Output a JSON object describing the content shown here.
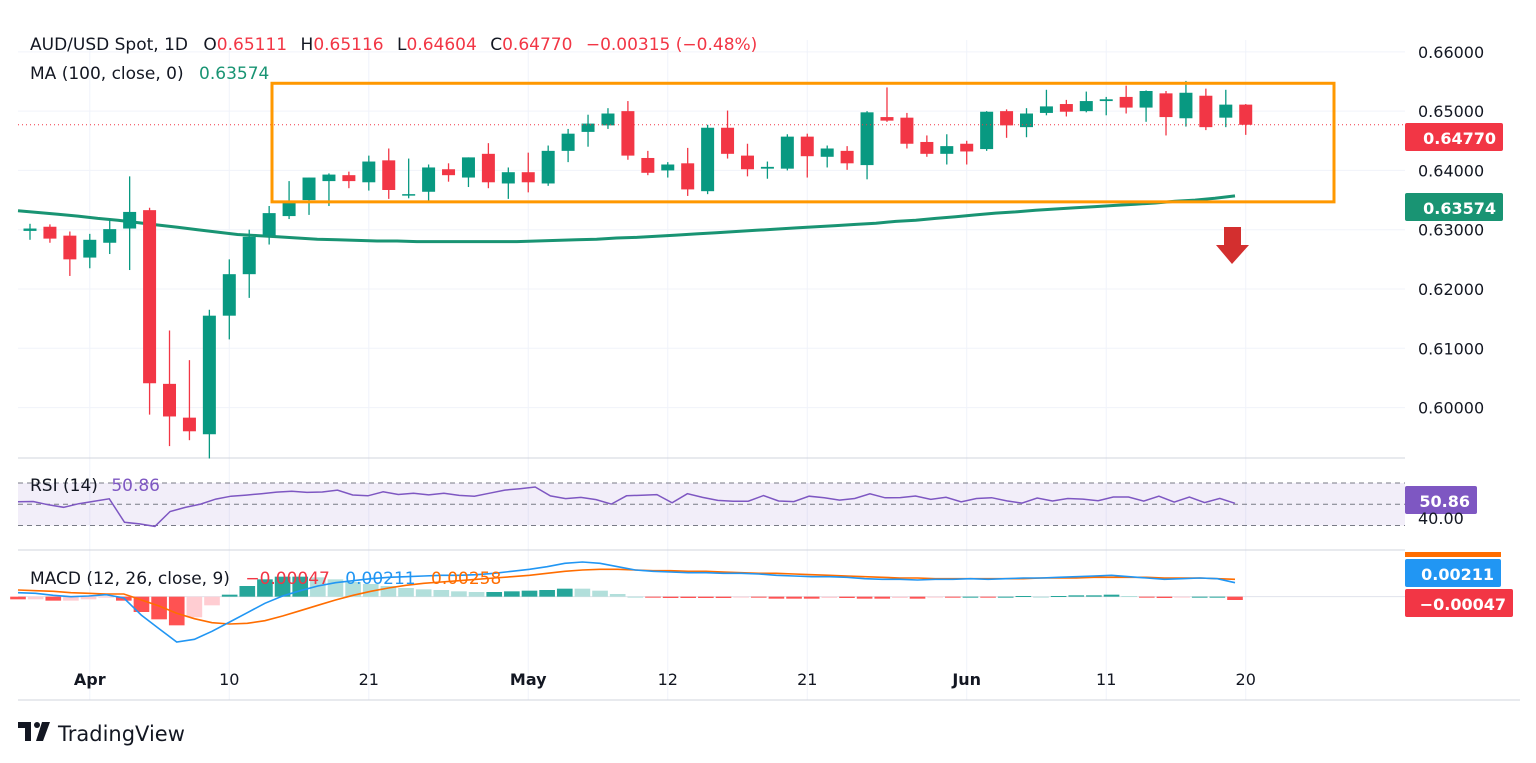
{
  "chart_data": {
    "type": "candlestick",
    "symbol": "AUD/USD Spot",
    "interval": "1D",
    "ohlc_legend": {
      "o_label": "O",
      "o": "0.65111",
      "h_label": "H",
      "h": "0.65116",
      "l_label": "L",
      "l": "0.64604",
      "c_label": "C",
      "c": "0.64770",
      "change": "−0.00315 (−0.48%)"
    },
    "ma": {
      "label": "MA (100, close, 0)",
      "value": "0.63574",
      "tag": "0.63574"
    },
    "price_tag": "0.64770",
    "y_ticks": [
      "0.66000",
      "0.65000",
      "0.64000",
      "0.63000",
      "0.62000",
      "0.61000",
      "0.60000"
    ],
    "ylim": [
      0.592,
      0.662
    ],
    "x_ticks": [
      "Apr",
      "10",
      "21",
      "May",
      "12",
      "21",
      "Jun",
      "11",
      "20"
    ],
    "candles": [
      {
        "o": 0.6298,
        "h": 0.631,
        "l": 0.6283,
        "c": 0.6302
      },
      {
        "o": 0.6305,
        "h": 0.6309,
        "l": 0.6278,
        "c": 0.6285
      },
      {
        "o": 0.629,
        "h": 0.6297,
        "l": 0.6222,
        "c": 0.625
      },
      {
        "o": 0.6253,
        "h": 0.6293,
        "l": 0.6235,
        "c": 0.6283
      },
      {
        "o": 0.6278,
        "h": 0.6318,
        "l": 0.6259,
        "c": 0.6301
      },
      {
        "o": 0.6302,
        "h": 0.639,
        "l": 0.6232,
        "c": 0.633
      },
      {
        "o": 0.6333,
        "h": 0.6337,
        "l": 0.5988,
        "c": 0.6041
      },
      {
        "o": 0.604,
        "h": 0.613,
        "l": 0.5935,
        "c": 0.5985
      },
      {
        "o": 0.5983,
        "h": 0.608,
        "l": 0.5945,
        "c": 0.596
      },
      {
        "o": 0.5955,
        "h": 0.6165,
        "l": 0.5914,
        "c": 0.6155
      },
      {
        "o": 0.6155,
        "h": 0.625,
        "l": 0.6115,
        "c": 0.6225
      },
      {
        "o": 0.6225,
        "h": 0.63,
        "l": 0.6185,
        "c": 0.6288
      },
      {
        "o": 0.629,
        "h": 0.634,
        "l": 0.6275,
        "c": 0.6328
      },
      {
        "o": 0.6323,
        "h": 0.6382,
        "l": 0.6318,
        "c": 0.6348
      },
      {
        "o": 0.635,
        "h": 0.6388,
        "l": 0.6325,
        "c": 0.6388
      },
      {
        "o": 0.6382,
        "h": 0.6395,
        "l": 0.634,
        "c": 0.6393
      },
      {
        "o": 0.6392,
        "h": 0.6398,
        "l": 0.637,
        "c": 0.6382
      },
      {
        "o": 0.638,
        "h": 0.6425,
        "l": 0.6366,
        "c": 0.6415
      },
      {
        "o": 0.6417,
        "h": 0.6437,
        "l": 0.6352,
        "c": 0.6367
      },
      {
        "o": 0.6359,
        "h": 0.642,
        "l": 0.6353,
        "c": 0.636
      },
      {
        "o": 0.6364,
        "h": 0.641,
        "l": 0.6346,
        "c": 0.6405
      },
      {
        "o": 0.6402,
        "h": 0.6412,
        "l": 0.6381,
        "c": 0.6392
      },
      {
        "o": 0.6388,
        "h": 0.6422,
        "l": 0.6372,
        "c": 0.6422
      },
      {
        "o": 0.6428,
        "h": 0.6446,
        "l": 0.637,
        "c": 0.638
      },
      {
        "o": 0.6378,
        "h": 0.6405,
        "l": 0.6352,
        "c": 0.6397
      },
      {
        "o": 0.6397,
        "h": 0.643,
        "l": 0.6363,
        "c": 0.638
      },
      {
        "o": 0.6378,
        "h": 0.6442,
        "l": 0.6374,
        "c": 0.6433
      },
      {
        "o": 0.6433,
        "h": 0.647,
        "l": 0.6414,
        "c": 0.6462
      },
      {
        "o": 0.6465,
        "h": 0.6494,
        "l": 0.644,
        "c": 0.6479
      },
      {
        "o": 0.6476,
        "h": 0.6505,
        "l": 0.647,
        "c": 0.6496
      },
      {
        "o": 0.65,
        "h": 0.6517,
        "l": 0.6418,
        "c": 0.6425
      },
      {
        "o": 0.6421,
        "h": 0.6433,
        "l": 0.6392,
        "c": 0.6396
      },
      {
        "o": 0.64,
        "h": 0.6414,
        "l": 0.6388,
        "c": 0.641
      },
      {
        "o": 0.6412,
        "h": 0.6438,
        "l": 0.6357,
        "c": 0.6368
      },
      {
        "o": 0.6365,
        "h": 0.6477,
        "l": 0.636,
        "c": 0.6472
      },
      {
        "o": 0.6472,
        "h": 0.6501,
        "l": 0.642,
        "c": 0.6428
      },
      {
        "o": 0.6425,
        "h": 0.6445,
        "l": 0.639,
        "c": 0.6402
      },
      {
        "o": 0.6403,
        "h": 0.6415,
        "l": 0.6386,
        "c": 0.6406
      },
      {
        "o": 0.6403,
        "h": 0.6461,
        "l": 0.64,
        "c": 0.6457
      },
      {
        "o": 0.6457,
        "h": 0.6462,
        "l": 0.6388,
        "c": 0.6424
      },
      {
        "o": 0.6423,
        "h": 0.6442,
        "l": 0.6405,
        "c": 0.6437
      },
      {
        "o": 0.6433,
        "h": 0.6441,
        "l": 0.6401,
        "c": 0.6412
      },
      {
        "o": 0.6409,
        "h": 0.65,
        "l": 0.6385,
        "c": 0.6498
      },
      {
        "o": 0.649,
        "h": 0.654,
        "l": 0.6482,
        "c": 0.6484
      },
      {
        "o": 0.6489,
        "h": 0.6497,
        "l": 0.6437,
        "c": 0.6445
      },
      {
        "o": 0.6448,
        "h": 0.6459,
        "l": 0.6423,
        "c": 0.6428
      },
      {
        "o": 0.6428,
        "h": 0.6461,
        "l": 0.641,
        "c": 0.6441
      },
      {
        "o": 0.6445,
        "h": 0.645,
        "l": 0.641,
        "c": 0.6432
      },
      {
        "o": 0.6436,
        "h": 0.65,
        "l": 0.6433,
        "c": 0.6499
      },
      {
        "o": 0.65,
        "h": 0.6503,
        "l": 0.6455,
        "c": 0.6476
      },
      {
        "o": 0.6473,
        "h": 0.6505,
        "l": 0.6456,
        "c": 0.6496
      },
      {
        "o": 0.6497,
        "h": 0.6536,
        "l": 0.6493,
        "c": 0.6508
      },
      {
        "o": 0.6512,
        "h": 0.6519,
        "l": 0.6491,
        "c": 0.6499
      },
      {
        "o": 0.65,
        "h": 0.6533,
        "l": 0.6498,
        "c": 0.6517
      },
      {
        "o": 0.6517,
        "h": 0.6524,
        "l": 0.6493,
        "c": 0.652
      },
      {
        "o": 0.6524,
        "h": 0.6543,
        "l": 0.6496,
        "c": 0.6506
      },
      {
        "o": 0.6506,
        "h": 0.6535,
        "l": 0.6482,
        "c": 0.6534
      },
      {
        "o": 0.653,
        "h": 0.6534,
        "l": 0.6459,
        "c": 0.649
      },
      {
        "o": 0.6488,
        "h": 0.6551,
        "l": 0.6474,
        "c": 0.6531
      },
      {
        "o": 0.6526,
        "h": 0.6538,
        "l": 0.6468,
        "c": 0.6473
      },
      {
        "o": 0.6489,
        "h": 0.6536,
        "l": 0.6473,
        "c": 0.6511
      },
      {
        "o": 0.6511,
        "h": 0.6512,
        "l": 0.646,
        "c": 0.6477
      }
    ],
    "ma_values": [
      0.6332,
      0.6329,
      0.6326,
      0.6323,
      0.6319,
      0.6316,
      0.6312,
      0.6308,
      0.6304,
      0.63,
      0.6296,
      0.6292,
      0.629,
      0.6288,
      0.6286,
      0.6284,
      0.6283,
      0.6282,
      0.6281,
      0.6281,
      0.628,
      0.628,
      0.628,
      0.628,
      0.628,
      0.628,
      0.6281,
      0.6282,
      0.6283,
      0.6284,
      0.6286,
      0.6287,
      0.6289,
      0.6291,
      0.6293,
      0.6295,
      0.6297,
      0.6299,
      0.6301,
      0.6303,
      0.6305,
      0.6307,
      0.6309,
      0.6311,
      0.6314,
      0.6316,
      0.6319,
      0.6322,
      0.6325,
      0.6328,
      0.633,
      0.6333,
      0.6335,
      0.6337,
      0.6339,
      0.6341,
      0.6343,
      0.6345,
      0.6348,
      0.635,
      0.6353,
      0.6357
    ],
    "consolidation_box": {
      "price_top": 0.6547,
      "price_bottom": 0.6347
    },
    "rsi": {
      "label": "RSI (14)",
      "value": "50.86",
      "tag": "50.86",
      "level_label": "40.00",
      "levels": [
        70,
        50,
        30
      ],
      "ylim": [
        22,
        86
      ],
      "values": [
        52.4,
        52.6,
        49.5,
        47.1,
        50.5,
        52.8,
        55.1,
        33.0,
        31.5,
        29.2,
        43.2,
        47.0,
        50.1,
        54.8,
        57.6,
        58.6,
        59.9,
        61.4,
        62.2,
        61.2,
        61.5,
        63.3,
        58.7,
        58.0,
        61.7,
        59.2,
        60.3,
        58.8,
        60.3,
        58.3,
        57.6,
        60.4,
        63.3,
        64.6,
        66.2,
        57.9,
        55.3,
        56.4,
        54.4,
        50.1,
        58.0,
        58.5,
        59.1,
        51.4,
        59.9,
        56.4,
        53.6,
        52.8,
        52.9,
        58.1,
        53.1,
        52.5,
        57.6,
        56.2,
        53.9,
        55.4,
        59.8,
        56.1,
        56.3,
        57.8,
        54.6,
        56.5,
        52.2,
        55.4,
        56.2,
        53.2,
        51.1,
        55.9,
        53.1,
        55.4,
        54.8,
        53.3,
        56.8,
        56.8,
        53.0,
        57.6,
        52.0,
        56.7,
        51.6,
        55.5,
        50.9
      ]
    },
    "macd": {
      "label": "MACD (12, 26, close, 9)",
      "hist_value": "−0.00047",
      "macd_value": "0.00211",
      "signal_value": "0.00258",
      "macd_tag": "0.00211",
      "hist_tag": "−0.00047",
      "ylim": [
        -0.008,
        0.0055
      ],
      "macd_values": [
        0.0006,
        0.0005,
        0.0002,
        0.0,
        0.0001,
        0.0003,
        -0.0002,
        -0.0028,
        -0.0048,
        -0.0068,
        -0.0064,
        -0.0052,
        -0.0038,
        -0.0024,
        -0.001,
        0.0001,
        0.0009,
        0.0016,
        0.0021,
        0.0024,
        0.0027,
        0.0029,
        0.003,
        0.0031,
        0.0032,
        0.0032,
        0.0033,
        0.0035,
        0.0038,
        0.0041,
        0.0045,
        0.005,
        0.0052,
        0.005,
        0.0045,
        0.004,
        0.0038,
        0.0037,
        0.0036,
        0.0036,
        0.0035,
        0.0035,
        0.0034,
        0.0032,
        0.0031,
        0.003,
        0.003,
        0.0029,
        0.0027,
        0.0026,
        0.0026,
        0.0025,
        0.0026,
        0.0026,
        0.0027,
        0.0026,
        0.0027,
        0.0028,
        0.0028,
        0.0029,
        0.003,
        0.0031,
        0.0032,
        0.003,
        0.0028,
        0.0026,
        0.0027,
        0.0028,
        0.0027,
        0.0021
      ],
      "signal_values": [
        0.001,
        0.0009,
        0.0008,
        0.0006,
        0.0005,
        0.0004,
        0.0004,
        -0.0005,
        -0.0014,
        -0.0025,
        -0.0033,
        -0.0039,
        -0.0041,
        -0.004,
        -0.0036,
        -0.0029,
        -0.0021,
        -0.0013,
        -0.0005,
        0.0002,
        0.0008,
        0.0013,
        0.0017,
        0.002,
        0.0022,
        0.0024,
        0.0026,
        0.0028,
        0.003,
        0.0032,
        0.0035,
        0.0038,
        0.004,
        0.0041,
        0.0041,
        0.004,
        0.0039,
        0.0039,
        0.0038,
        0.0038,
        0.0037,
        0.0036,
        0.0035,
        0.0035,
        0.0034,
        0.0033,
        0.0032,
        0.0031,
        0.003,
        0.0029,
        0.0028,
        0.0028,
        0.0027,
        0.0027,
        0.0027,
        0.0027,
        0.0027,
        0.0027,
        0.0028,
        0.0028,
        0.0028,
        0.0029,
        0.0029,
        0.0029,
        0.0029,
        0.0028,
        0.0028,
        0.0028,
        0.0027,
        0.0026
      ]
    }
  },
  "branding": {
    "name": "TradingView"
  },
  "colors": {
    "up": "#089981",
    "down": "#f23645",
    "ma": "#199473",
    "box": "#ff9800",
    "rsi": "#7e57c2",
    "macd": "#2196f3",
    "signal": "#ff6d00",
    "arrow": "#d32f2f",
    "text": "#131722"
  }
}
